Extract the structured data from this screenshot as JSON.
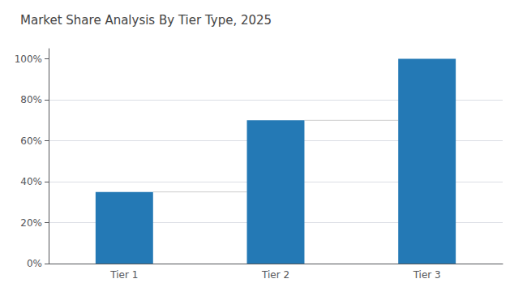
{
  "chart_data": {
    "type": "bar",
    "title": "Market Share Analysis By Tier Type, 2025",
    "categories": [
      "Tier 1",
      "Tier 2",
      "Tier 3"
    ],
    "values": [
      35,
      70,
      100
    ],
    "color": "#2479B5",
    "ylim": [
      0,
      105
    ],
    "yticks": [
      {
        "value": 0,
        "label": "0%"
      },
      {
        "value": 20,
        "label": "20%"
      },
      {
        "value": 40,
        "label": "40%"
      },
      {
        "value": 60,
        "label": "60%"
      },
      {
        "value": 80,
        "label": "80%"
      },
      {
        "value": 100,
        "label": "100%"
      }
    ],
    "grid": true
  }
}
